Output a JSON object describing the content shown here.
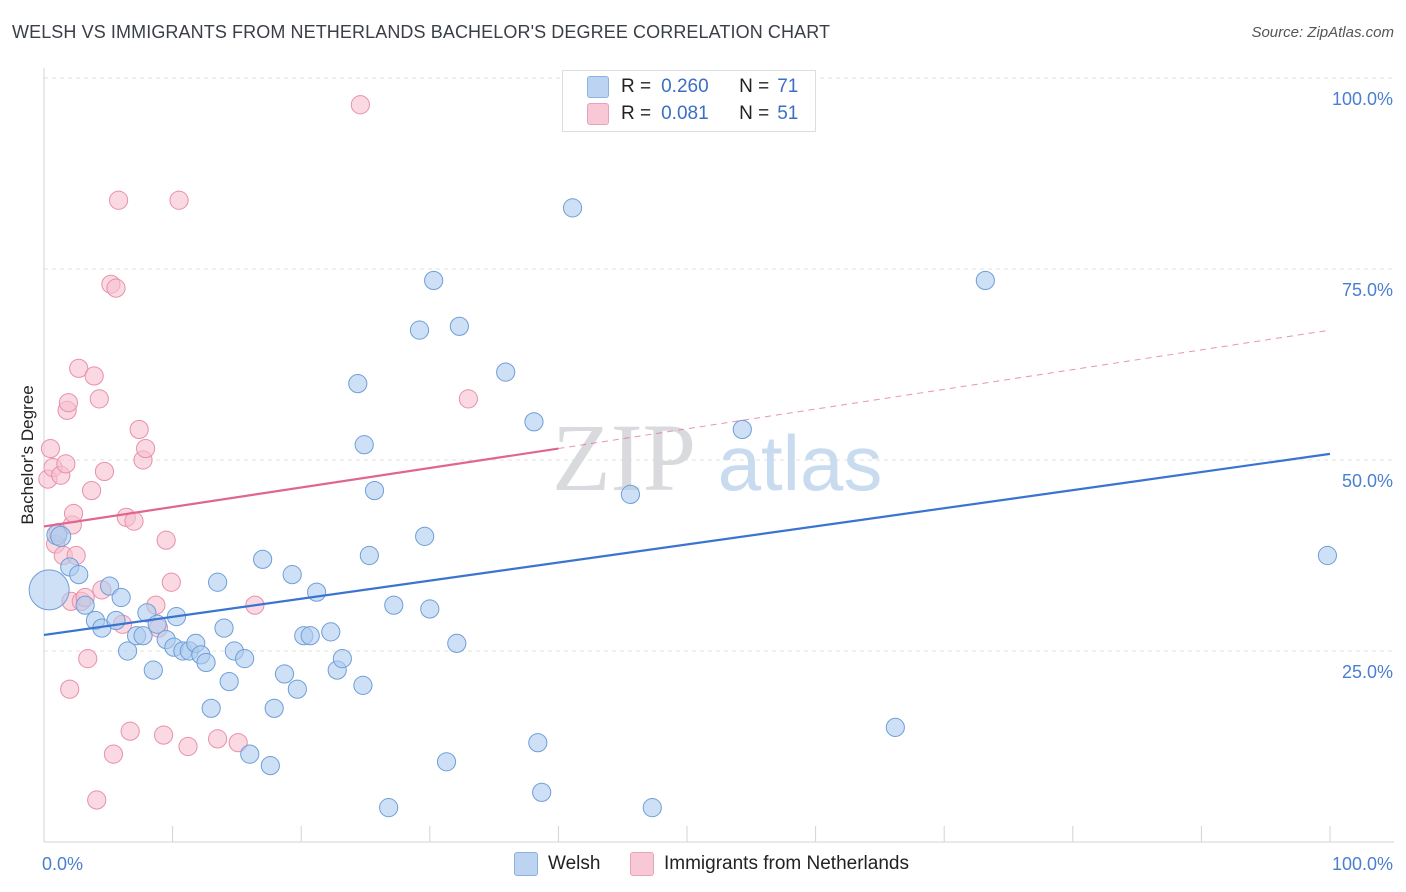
{
  "header": {
    "title": "WELSH VS IMMIGRANTS FROM NETHERLANDS BACHELOR'S DEGREE CORRELATION CHART",
    "source": "Source: ZipAtlas.com"
  },
  "legend_top": {
    "r_label": "R =",
    "n_label": "N =",
    "welsh": {
      "r": "0.260",
      "n": "71"
    },
    "neth": {
      "r": "0.081",
      "n": "51"
    }
  },
  "legend_bottom": {
    "welsh": "Welsh",
    "neth": "Immigrants from Netherlands"
  },
  "watermark": {
    "zip": "ZIP",
    "atlas": "atlas"
  },
  "colors": {
    "welsh_fill": "#aecbef",
    "welsh_stroke": "#6f9ed8",
    "welsh_line": "#3a74d0",
    "neth_fill": "#f7bfd0",
    "neth_stroke": "#e890ab",
    "neth_line": "#e0658f",
    "tick_label": "#4a7fd0",
    "grid": "#e0e0e0"
  },
  "chart_data": {
    "type": "scatter",
    "title": "WELSH VS IMMIGRANTS FROM NETHERLANDS BACHELOR'S DEGREE CORRELATION CHART",
    "xlabel": "",
    "ylabel": "Bachelor's Degree",
    "xlim": [
      0,
      100
    ],
    "ylim": [
      0,
      100
    ],
    "x_tick_labels": [
      "0.0%",
      "100.0%"
    ],
    "y_tick_labels": [
      "25.0%",
      "50.0%",
      "75.0%",
      "100.0%"
    ],
    "y_ticks": [
      25,
      50,
      75,
      100
    ],
    "grid": true,
    "legend_position": "top-center",
    "series": [
      {
        "name": "Welsh",
        "r": 0.26,
        "n": 71,
        "trend": {
          "x": [
            0,
            100
          ],
          "y": [
            27.1,
            50.8
          ]
        },
        "points": [
          [
            0.4,
            33.0,
            22
          ],
          [
            1.0,
            40.2,
            11
          ],
          [
            1.3,
            40.0,
            11
          ],
          [
            2.0,
            36.0,
            10
          ],
          [
            2.7,
            35.0,
            10
          ],
          [
            3.2,
            31.0,
            10
          ],
          [
            4.0,
            29.0,
            10
          ],
          [
            4.5,
            28.0,
            10
          ],
          [
            5.1,
            33.5,
            10
          ],
          [
            5.6,
            29.0,
            10
          ],
          [
            6.0,
            32.0,
            10
          ],
          [
            6.5,
            25.0,
            10
          ],
          [
            7.2,
            27.0,
            10
          ],
          [
            7.7,
            27.0,
            10
          ],
          [
            8.0,
            30.0,
            10
          ],
          [
            8.5,
            22.5,
            10
          ],
          [
            8.8,
            28.5,
            10
          ],
          [
            9.5,
            26.5,
            10
          ],
          [
            10.1,
            25.5,
            10
          ],
          [
            10.3,
            29.5,
            10
          ],
          [
            10.8,
            25.0,
            10
          ],
          [
            11.3,
            25.0,
            10
          ],
          [
            11.8,
            26.0,
            10
          ],
          [
            12.2,
            24.5,
            10
          ],
          [
            12.6,
            23.5,
            10
          ],
          [
            13.0,
            17.5,
            10
          ],
          [
            13.5,
            34.0,
            10
          ],
          [
            14.0,
            28.0,
            10
          ],
          [
            14.4,
            21.0,
            10
          ],
          [
            14.8,
            25.0,
            10
          ],
          [
            15.6,
            24.0,
            10
          ],
          [
            16.0,
            11.5,
            10
          ],
          [
            17.0,
            37.0,
            10
          ],
          [
            17.6,
            10.0,
            10
          ],
          [
            17.9,
            17.5,
            10
          ],
          [
            18.7,
            22.0,
            10
          ],
          [
            19.3,
            35.0,
            10
          ],
          [
            19.7,
            20.0,
            10
          ],
          [
            20.2,
            27.0,
            10
          ],
          [
            20.7,
            27.0,
            10
          ],
          [
            21.2,
            32.7,
            10
          ],
          [
            22.3,
            27.5,
            10
          ],
          [
            22.8,
            22.5,
            10
          ],
          [
            23.2,
            24.0,
            10
          ],
          [
            24.4,
            60.0,
            10
          ],
          [
            24.8,
            20.5,
            10
          ],
          [
            24.9,
            52.0,
            10
          ],
          [
            25.3,
            37.5,
            10
          ],
          [
            25.7,
            46.0,
            10
          ],
          [
            26.8,
            4.5,
            10
          ],
          [
            27.2,
            31.0,
            10
          ],
          [
            29.2,
            67.0,
            10
          ],
          [
            29.6,
            40.0,
            10
          ],
          [
            30.0,
            30.5,
            10
          ],
          [
            30.3,
            73.5,
            10
          ],
          [
            31.3,
            10.5,
            10
          ],
          [
            32.1,
            26.0,
            10
          ],
          [
            32.3,
            67.5,
            10
          ],
          [
            35.9,
            61.5,
            10
          ],
          [
            38.1,
            55.0,
            10
          ],
          [
            38.4,
            13.0,
            10
          ],
          [
            38.7,
            6.5,
            10
          ],
          [
            41.1,
            83.0,
            10
          ],
          [
            45.6,
            45.5,
            10
          ],
          [
            47.3,
            4.5,
            10
          ],
          [
            54.3,
            54.0,
            10
          ],
          [
            66.2,
            15.0,
            10
          ],
          [
            73.2,
            73.5,
            10
          ],
          [
            99.8,
            37.5,
            10
          ]
        ]
      },
      {
        "name": "Immigrants from Netherlands",
        "r": 0.081,
        "n": 51,
        "trend": {
          "x": [
            0,
            40
          ],
          "y": [
            41.3,
            51.5
          ]
        },
        "trend_dashed": {
          "x": [
            40,
            100
          ],
          "y": [
            51.5,
            67.0
          ]
        },
        "points": [
          [
            0.3,
            47.5,
            10
          ],
          [
            0.5,
            51.5,
            10
          ],
          [
            0.7,
            49.0,
            10
          ],
          [
            0.9,
            39.0,
            10
          ],
          [
            1.1,
            40.5,
            10
          ],
          [
            1.3,
            48.0,
            10
          ],
          [
            1.5,
            37.5,
            10
          ],
          [
            1.7,
            49.5,
            10
          ],
          [
            1.8,
            56.5,
            10
          ],
          [
            1.9,
            57.5,
            10
          ],
          [
            2.1,
            31.5,
            10
          ],
          [
            2.2,
            41.5,
            10
          ],
          [
            2.3,
            43.0,
            10
          ],
          [
            2.5,
            37.5,
            10
          ],
          [
            2.7,
            62.0,
            10
          ],
          [
            2.9,
            31.5,
            10
          ],
          [
            3.2,
            32.0,
            10
          ],
          [
            3.4,
            24.0,
            10
          ],
          [
            3.7,
            46.0,
            10
          ],
          [
            3.9,
            61.0,
            10
          ],
          [
            4.1,
            5.5,
            10
          ],
          [
            4.3,
            58.0,
            10
          ],
          [
            4.5,
            33.0,
            10
          ],
          [
            4.7,
            48.5,
            10
          ],
          [
            5.2,
            73.0,
            10
          ],
          [
            5.4,
            11.5,
            10
          ],
          [
            5.6,
            72.5,
            10
          ],
          [
            5.8,
            84.0,
            10
          ],
          [
            6.1,
            28.5,
            10
          ],
          [
            6.4,
            42.5,
            10
          ],
          [
            6.7,
            14.5,
            10
          ],
          [
            7.0,
            42.0,
            10
          ],
          [
            7.4,
            54.0,
            10
          ],
          [
            7.7,
            50.0,
            10
          ],
          [
            7.9,
            51.5,
            10
          ],
          [
            8.7,
            31.0,
            10
          ],
          [
            8.9,
            28.0,
            10
          ],
          [
            9.3,
            14.0,
            10
          ],
          [
            9.5,
            39.5,
            10
          ],
          [
            9.9,
            34.0,
            10
          ],
          [
            10.5,
            84.0,
            10
          ],
          [
            11.2,
            12.5,
            10
          ],
          [
            13.5,
            13.5,
            10
          ],
          [
            15.1,
            13.0,
            10
          ],
          [
            16.4,
            31.0,
            10
          ],
          [
            24.6,
            96.5,
            10
          ],
          [
            33.0,
            58.0,
            10
          ],
          [
            2.0,
            20.0,
            10
          ]
        ]
      }
    ]
  }
}
